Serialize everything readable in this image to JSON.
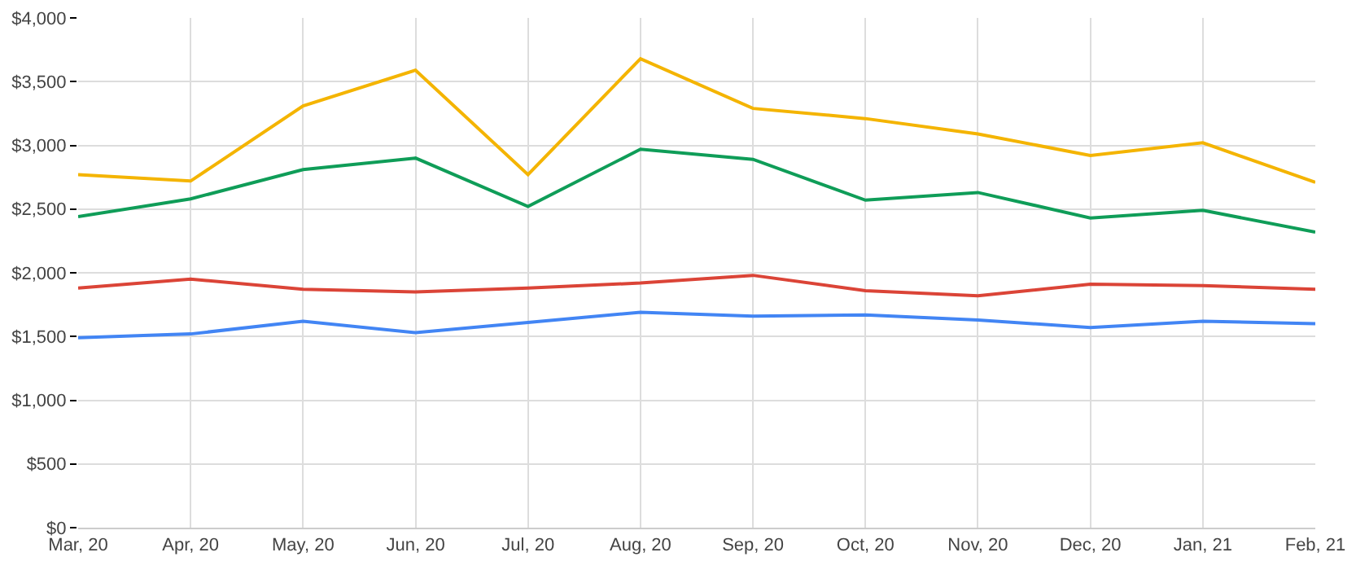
{
  "chart_data": {
    "type": "line",
    "categories": [
      "Mar, 20",
      "Apr, 20",
      "May, 20",
      "Jun, 20",
      "Jul, 20",
      "Aug, 20",
      "Sep, 20",
      "Oct, 20",
      "Nov, 20",
      "Dec, 20",
      "Jan, 21",
      "Feb, 21"
    ],
    "series": [
      {
        "color": "#f4b400",
        "values": [
          2770,
          2720,
          3310,
          3590,
          2770,
          3680,
          3290,
          3210,
          3090,
          2920,
          3020,
          2710
        ]
      },
      {
        "color": "#0f9d58",
        "values": [
          2440,
          2580,
          2810,
          2900,
          2520,
          2970,
          2890,
          2570,
          2630,
          2430,
          2490,
          2320
        ]
      },
      {
        "color": "#db4437",
        "values": [
          1880,
          1950,
          1870,
          1850,
          1880,
          1920,
          1980,
          1860,
          1820,
          1910,
          1900,
          1870
        ]
      },
      {
        "color": "#4285f4",
        "values": [
          1490,
          1520,
          1620,
          1530,
          1610,
          1690,
          1660,
          1670,
          1630,
          1570,
          1620,
          1600
        ]
      }
    ],
    "ylim": [
      0,
      4000
    ],
    "yticks": [
      {
        "value": 0,
        "label": "$0"
      },
      {
        "value": 500,
        "label": "$500"
      },
      {
        "value": 1000,
        "label": "$1,000"
      },
      {
        "value": 1500,
        "label": "$1,500"
      },
      {
        "value": 2000,
        "label": "$2,000"
      },
      {
        "value": 2500,
        "label": "$2,500"
      },
      {
        "value": 3000,
        "label": "$3,000"
      },
      {
        "value": 3500,
        "label": "$3,500"
      },
      {
        "value": 4000,
        "label": "$4,000"
      }
    ],
    "grid": true,
    "marker": "none",
    "line_style": "solid"
  }
}
